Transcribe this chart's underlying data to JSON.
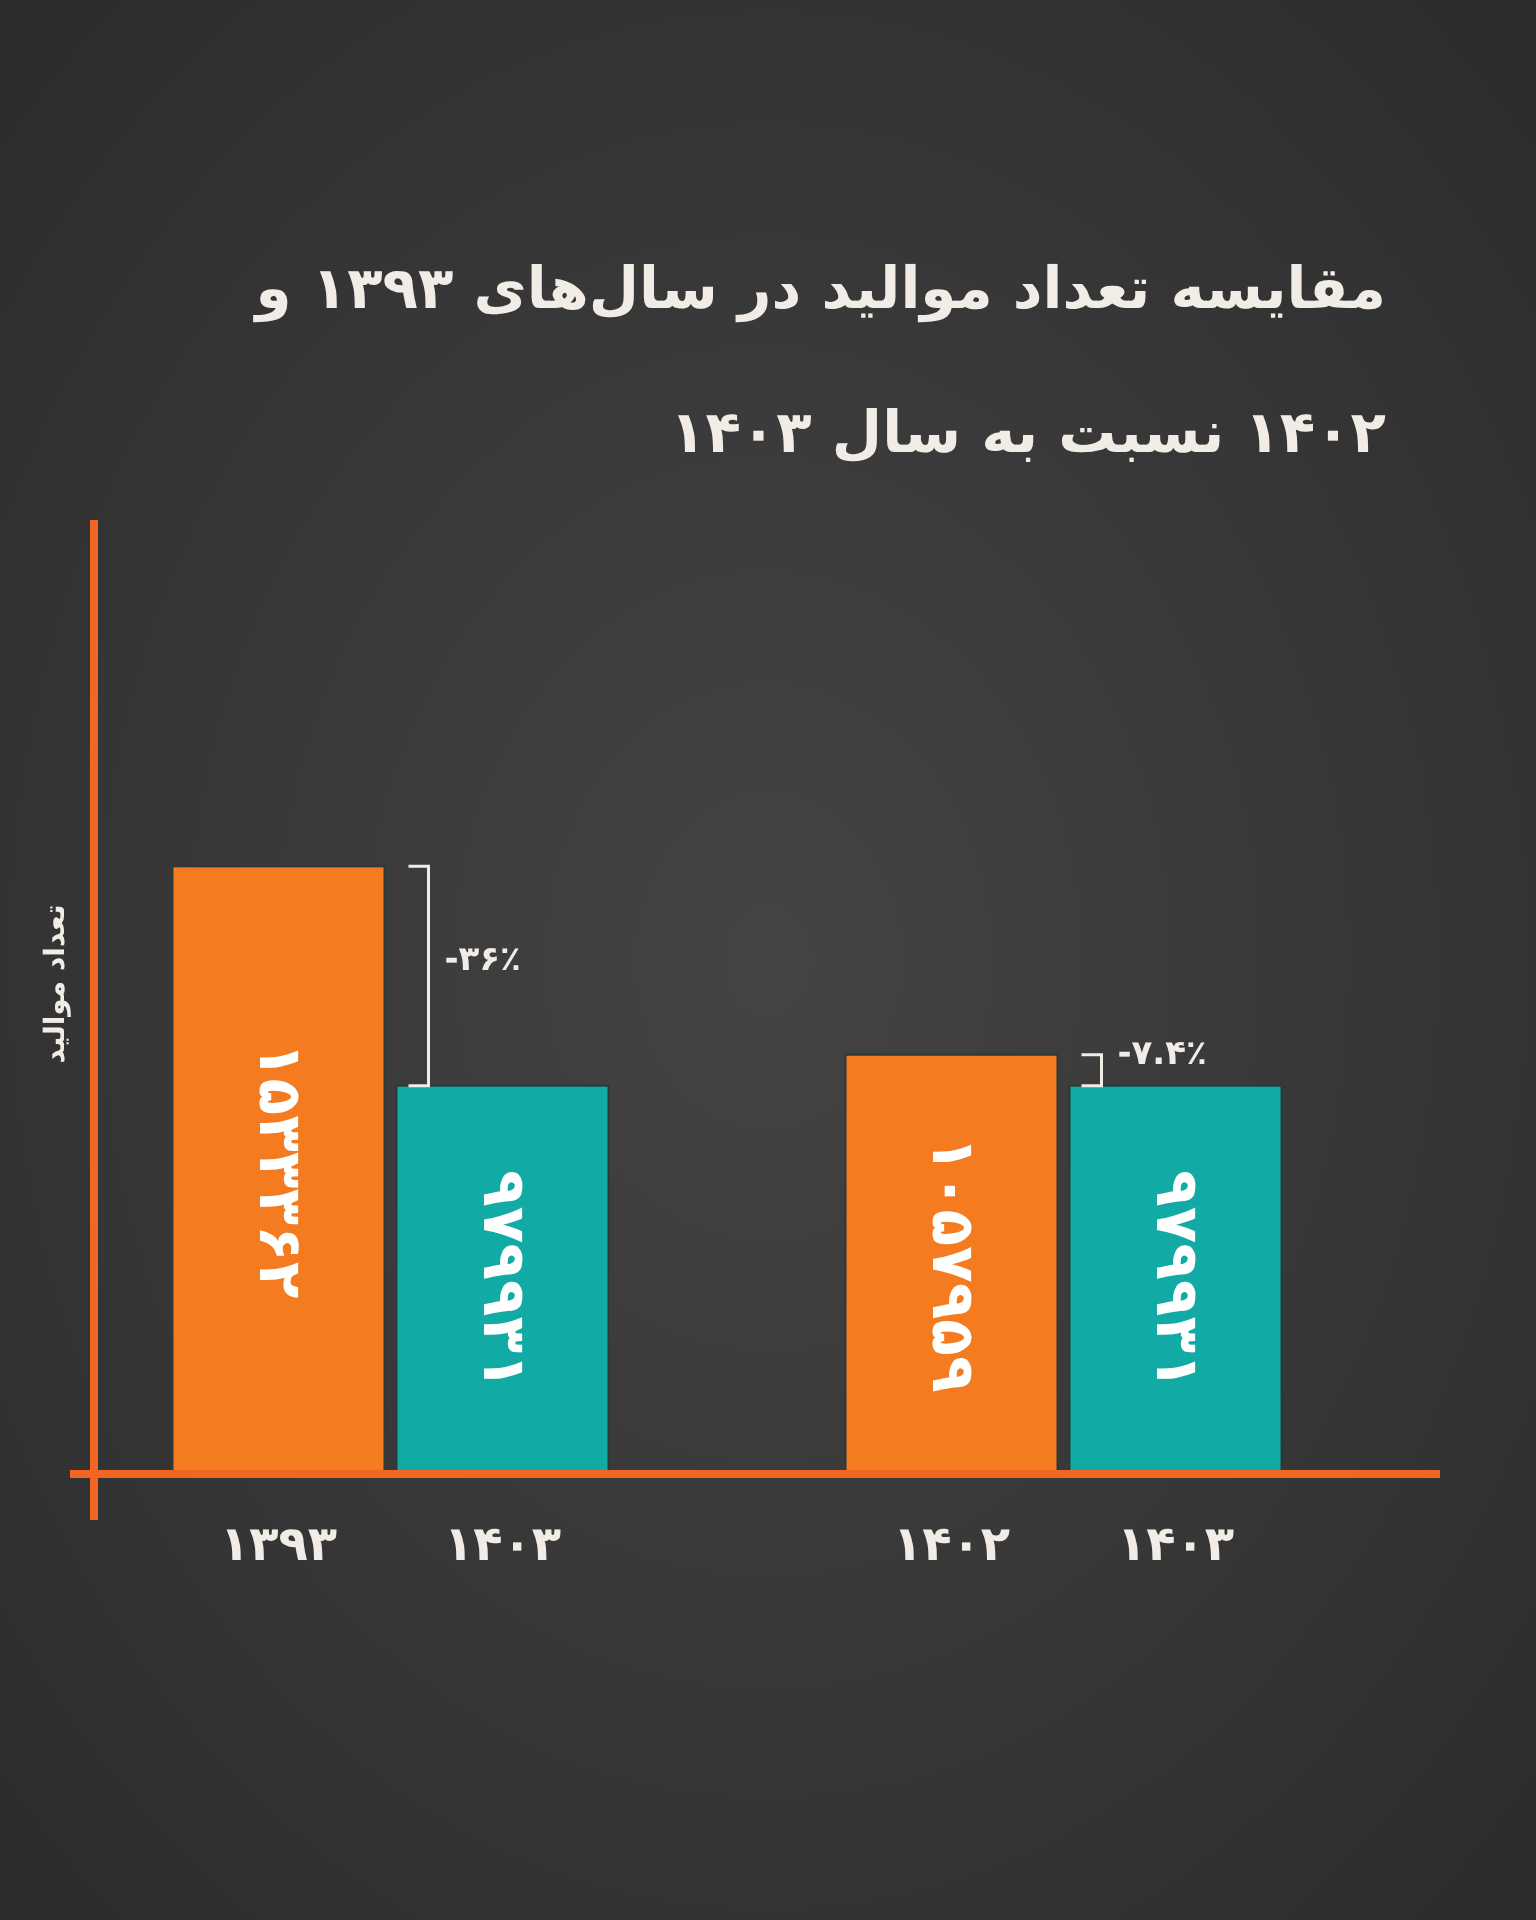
{
  "chart_data": {
    "type": "bar",
    "title": "مقایسه تعداد موالید در سال‌های ۱۳۹۳ و ۱۴۰۲ نسبت به سال ۱۴۰۳",
    "ylabel": "تعداد موالید",
    "categories": [
      "۱۳۹۳",
      "۱۴۰۳",
      "۱۴۰۲",
      "۱۴۰۳"
    ],
    "values": [
      1533362,
      979931,
      1057959,
      979931
    ],
    "colors": [
      "#f47b20",
      "#12aaa5",
      "#f47b20",
      "#12aaa5"
    ],
    "value_labels": [
      "۱۵۳۳۳۶۲",
      "۹۷۹۹۳۱",
      "۱۰۵۷۹۵۹",
      "۹۷۹۹۳۱"
    ],
    "annotations": [
      "-۳۶٪",
      "-۷.۴٪"
    ]
  }
}
